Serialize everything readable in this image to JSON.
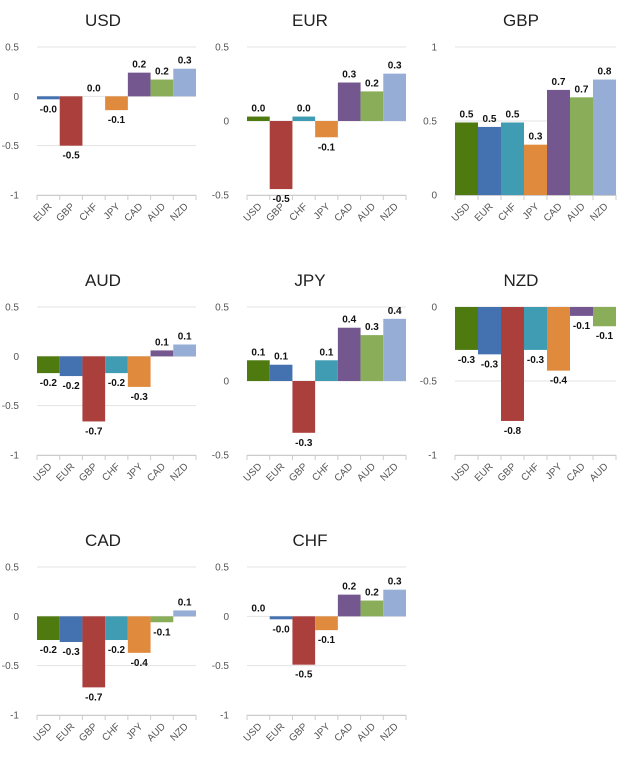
{
  "colors": {
    "USD": "#4e7a0f",
    "EUR": "#4471b0",
    "GBP": "#ab3f3c",
    "CHF": "#3f9cb2",
    "JPY": "#e08a3e",
    "CAD": "#74578f",
    "AUD": "#89ad58",
    "NZD": "#96aed6"
  },
  "chart_data": [
    {
      "type": "bar",
      "title": "USD",
      "categories": [
        "EUR",
        "GBP",
        "CHF",
        "JPY",
        "CAD",
        "AUD",
        "NZD"
      ],
      "values": [
        -0.03,
        -0.5,
        0.0,
        -0.14,
        0.24,
        0.17,
        0.28
      ],
      "labels": [
        "-0.0",
        "-0.5",
        "0.0",
        "-0.1",
        "0.2",
        "0.2",
        "0.3"
      ],
      "ylim": [
        -1,
        0.5
      ],
      "yticks": [
        "0.5",
        "0",
        "-0.5",
        "-1"
      ]
    },
    {
      "type": "bar",
      "title": "EUR",
      "categories": [
        "USD",
        "GBP",
        "CHF",
        "JPY",
        "CAD",
        "AUD",
        "NZD"
      ],
      "values": [
        0.03,
        -0.46,
        0.03,
        -0.11,
        0.26,
        0.2,
        0.32
      ],
      "labels": [
        "0.0",
        "-0.5",
        "0.0",
        "-0.1",
        "0.3",
        "0.2",
        "0.3"
      ],
      "ylim": [
        -0.5,
        0.5
      ],
      "yticks": [
        "0.5",
        "0",
        "-0.5"
      ]
    },
    {
      "type": "bar",
      "title": "GBP",
      "categories": [
        "USD",
        "EUR",
        "CHF",
        "JPY",
        "CAD",
        "AUD",
        "NZD"
      ],
      "values": [
        0.49,
        0.46,
        0.49,
        0.34,
        0.71,
        0.66,
        0.78
      ],
      "labels": [
        "0.5",
        "0.5",
        "0.5",
        "0.3",
        "0.7",
        "0.7",
        "0.8"
      ],
      "ylim": [
        0,
        1
      ],
      "yticks": [
        "1",
        "0.5",
        "0"
      ]
    },
    {
      "type": "bar",
      "title": "AUD",
      "categories": [
        "USD",
        "EUR",
        "GBP",
        "CHF",
        "JPY",
        "CAD",
        "NZD"
      ],
      "values": [
        -0.17,
        -0.2,
        -0.66,
        -0.17,
        -0.31,
        0.06,
        0.12
      ],
      "labels": [
        "-0.2",
        "-0.2",
        "-0.7",
        "-0.2",
        "-0.3",
        "0.1",
        "0.1"
      ],
      "ylim": [
        -1,
        0.5
      ],
      "yticks": [
        "0.5",
        "0",
        "-0.5",
        "-1"
      ]
    },
    {
      "type": "bar",
      "title": "JPY",
      "categories": [
        "USD",
        "EUR",
        "GBP",
        "CHF",
        "CAD",
        "AUD",
        "NZD"
      ],
      "values": [
        0.14,
        0.11,
        -0.35,
        0.14,
        0.36,
        0.31,
        0.42
      ],
      "labels": [
        "0.1",
        "0.1",
        "-0.3",
        "0.1",
        "0.4",
        "0.3",
        "0.4"
      ],
      "ylim": [
        -0.5,
        0.5
      ],
      "yticks": [
        "0.5",
        "0",
        "-0.5"
      ]
    },
    {
      "type": "bar",
      "title": "NZD",
      "categories": [
        "USD",
        "EUR",
        "GBP",
        "CHF",
        "JPY",
        "CAD",
        "AUD"
      ],
      "values": [
        -0.29,
        -0.32,
        -0.77,
        -0.29,
        -0.43,
        -0.06,
        -0.13
      ],
      "labels": [
        "-0.3",
        "-0.3",
        "-0.8",
        "-0.3",
        "-0.4",
        "-0.1",
        "-0.1"
      ],
      "ylim": [
        -1,
        0
      ],
      "yticks": [
        "0",
        "-0.5",
        "-1"
      ]
    },
    {
      "type": "bar",
      "title": "CAD",
      "categories": [
        "USD",
        "EUR",
        "GBP",
        "CHF",
        "JPY",
        "AUD",
        "NZD"
      ],
      "values": [
        -0.24,
        -0.26,
        -0.72,
        -0.24,
        -0.37,
        -0.06,
        0.06
      ],
      "labels": [
        "-0.2",
        "-0.3",
        "-0.7",
        "-0.2",
        "-0.4",
        "-0.1",
        "0.1"
      ],
      "ylim": [
        -1,
        0.5
      ],
      "yticks": [
        "0.5",
        "0",
        "-0.5",
        "-1"
      ]
    },
    {
      "type": "bar",
      "title": "CHF",
      "categories": [
        "USD",
        "EUR",
        "GBP",
        "JPY",
        "CAD",
        "AUD",
        "NZD"
      ],
      "values": [
        0.0,
        -0.03,
        -0.49,
        -0.14,
        0.22,
        0.16,
        0.27
      ],
      "labels": [
        "0.0",
        "-0.0",
        "-0.5",
        "-0.1",
        "0.2",
        "0.2",
        "0.3"
      ],
      "ylim": [
        -1,
        0.5
      ],
      "yticks": [
        "0.5",
        "0",
        "-0.5",
        "-1"
      ]
    }
  ]
}
